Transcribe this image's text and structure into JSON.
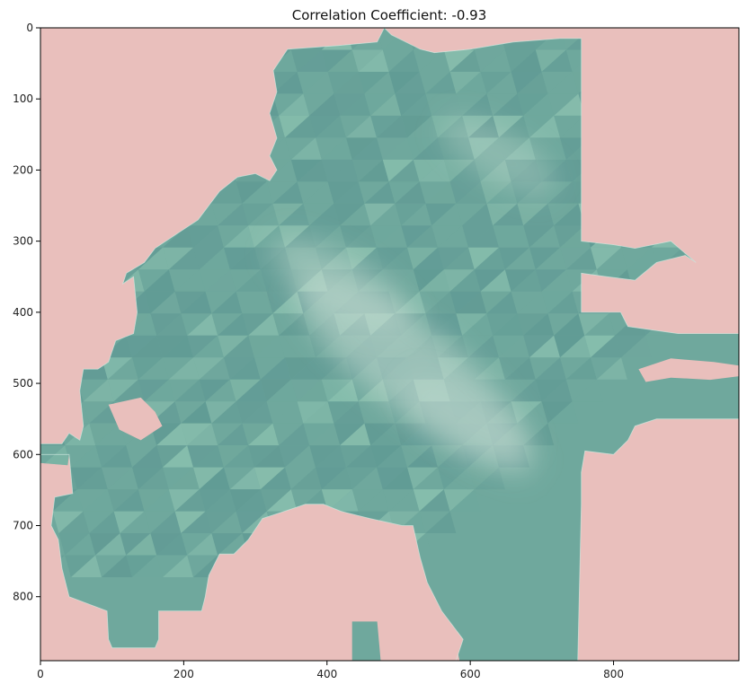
{
  "chart_data": {
    "type": "heatmap",
    "title": "Correlation Coefficient: -0.93",
    "xlabel": "",
    "ylabel": "",
    "xlim": [
      0,
      975
    ],
    "ylim": [
      0,
      890
    ],
    "y_inverted": true,
    "x_ticks": [
      0,
      200,
      400,
      600,
      800
    ],
    "y_ticks": [
      0,
      100,
      200,
      300,
      400,
      500,
      600,
      700,
      800
    ],
    "x_tick_labels": [
      "0",
      "200",
      "400",
      "600",
      "800"
    ],
    "y_tick_labels": [
      "0",
      "100",
      "200",
      "300",
      "400",
      "500",
      "600",
      "700",
      "800"
    ],
    "grid": false,
    "colors": {
      "background": "#e9bfbc",
      "region_dark": "#5e9893",
      "region_mid": "#6fa89d",
      "region_light": "#8cc2b0",
      "hotspot": "#c2d9cf"
    },
    "region_outline": [
      [
        345,
        30
      ],
      [
        415,
        25
      ],
      [
        470,
        20
      ],
      [
        480,
        0
      ],
      [
        490,
        10
      ],
      [
        510,
        20
      ],
      [
        530,
        30
      ],
      [
        550,
        35
      ],
      [
        600,
        30
      ],
      [
        630,
        25
      ],
      [
        660,
        20
      ],
      [
        725,
        15
      ],
      [
        755,
        15
      ],
      [
        755,
        300
      ],
      [
        800,
        305
      ],
      [
        830,
        310
      ],
      [
        880,
        300
      ],
      [
        915,
        330
      ],
      [
        900,
        320
      ],
      [
        860,
        330
      ],
      [
        830,
        355
      ],
      [
        790,
        350
      ],
      [
        755,
        345
      ],
      [
        755,
        400
      ],
      [
        810,
        400
      ],
      [
        820,
        420
      ],
      [
        890,
        430
      ],
      [
        975,
        430
      ],
      [
        975,
        550
      ],
      [
        860,
        550
      ],
      [
        830,
        560
      ],
      [
        820,
        580
      ],
      [
        800,
        600
      ],
      [
        760,
        595
      ],
      [
        755,
        625
      ],
      [
        755,
        670
      ],
      [
        750,
        890
      ],
      [
        580,
        890
      ],
      [
        590,
        860
      ],
      [
        560,
        820
      ],
      [
        540,
        780
      ],
      [
        530,
        745
      ],
      [
        520,
        700
      ],
      [
        505,
        700
      ],
      [
        460,
        690
      ],
      [
        420,
        680
      ],
      [
        395,
        670
      ],
      [
        370,
        670
      ],
      [
        340,
        680
      ],
      [
        310,
        690
      ],
      [
        290,
        720
      ],
      [
        270,
        740
      ],
      [
        250,
        740
      ],
      [
        235,
        770
      ],
      [
        230,
        800
      ],
      [
        225,
        820
      ],
      [
        165,
        820
      ],
      [
        165,
        860
      ],
      [
        160,
        872
      ],
      [
        100,
        872
      ],
      [
        95,
        860
      ],
      [
        93,
        820
      ],
      [
        40,
        800
      ],
      [
        30,
        760
      ],
      [
        25,
        720
      ],
      [
        15,
        700
      ],
      [
        20,
        660
      ],
      [
        45,
        655
      ],
      [
        40,
        600
      ],
      [
        0,
        600
      ],
      [
        0,
        585
      ],
      [
        30,
        585
      ],
      [
        40,
        570
      ],
      [
        55,
        580
      ],
      [
        60,
        560
      ],
      [
        55,
        510
      ],
      [
        60,
        480
      ],
      [
        80,
        480
      ],
      [
        95,
        470
      ],
      [
        105,
        440
      ],
      [
        130,
        430
      ],
      [
        135,
        400
      ],
      [
        130,
        350
      ],
      [
        115,
        360
      ],
      [
        120,
        345
      ],
      [
        145,
        330
      ],
      [
        160,
        310
      ],
      [
        190,
        290
      ],
      [
        220,
        270
      ],
      [
        250,
        230
      ],
      [
        275,
        210
      ],
      [
        300,
        205
      ],
      [
        320,
        215
      ],
      [
        330,
        200
      ],
      [
        320,
        180
      ],
      [
        330,
        155
      ],
      [
        320,
        120
      ],
      [
        330,
        90
      ],
      [
        325,
        60
      ]
    ],
    "cutouts": [
      [
        [
          835,
          480
        ],
        [
          880,
          465
        ],
        [
          940,
          470
        ],
        [
          975,
          475
        ],
        [
          975,
          490
        ],
        [
          935,
          495
        ],
        [
          880,
          492
        ],
        [
          845,
          498
        ]
      ],
      [
        [
          540,
          890
        ],
        [
          530,
          860
        ],
        [
          550,
          850
        ],
        [
          580,
          865
        ],
        [
          585,
          890
        ]
      ],
      [
        [
          95,
          530
        ],
        [
          140,
          520
        ],
        [
          160,
          540
        ],
        [
          170,
          560
        ],
        [
          140,
          580
        ],
        [
          110,
          565
        ]
      ]
    ],
    "islands": [
      [
        [
          435,
          835
        ],
        [
          470,
          835
        ],
        [
          475,
          890
        ],
        [
          435,
          890
        ]
      ],
      [
        [
          0,
          600
        ],
        [
          40,
          600
        ],
        [
          38,
          615
        ],
        [
          0,
          612
        ]
      ]
    ],
    "hotspots": [
      {
        "x": 520,
        "y": 480,
        "rx": 200,
        "ry": 60,
        "angle": 38,
        "opacity": 0.55
      },
      {
        "x": 420,
        "y": 360,
        "rx": 110,
        "ry": 40,
        "angle": 30,
        "opacity": 0.45
      },
      {
        "x": 640,
        "y": 180,
        "rx": 90,
        "ry": 35,
        "angle": 30,
        "opacity": 0.35
      },
      {
        "x": 600,
        "y": 560,
        "rx": 110,
        "ry": 40,
        "angle": 35,
        "opacity": 0.3
      }
    ]
  }
}
